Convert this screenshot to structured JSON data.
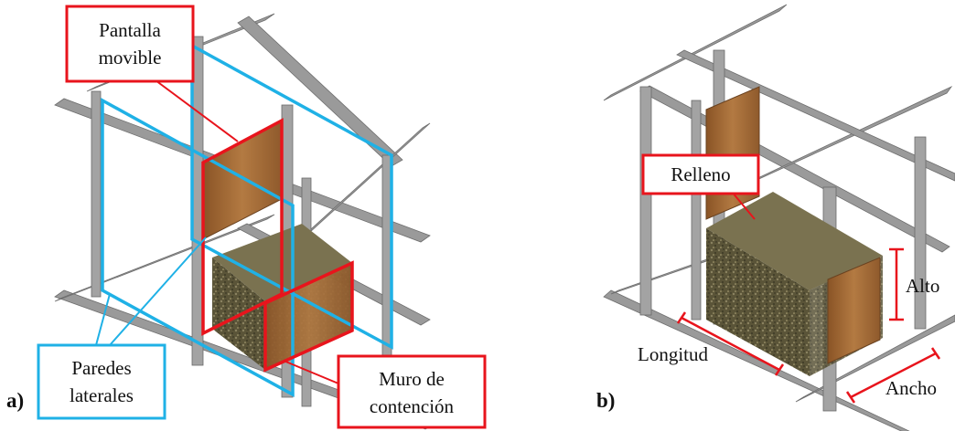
{
  "panel_a": {
    "letter": "a)",
    "labels": {
      "pantalla_line1": "Pantalla",
      "pantalla_line2": "movible",
      "paredes_line1": "Paredes",
      "paredes_line2": "laterales",
      "muro_line1": "Muro de",
      "muro_line2": "contención"
    }
  },
  "panel_b": {
    "letter": "b)",
    "labels": {
      "relleno": "Relleno",
      "alto": "Alto",
      "longitud": "Longitud",
      "ancho": "Ancho"
    }
  },
  "colors": {
    "red_callout": "#e8141c",
    "blue_callout": "#1fb1e6",
    "frame_gray": "#9a9a9a",
    "wood": "#a9703a",
    "soil": "#5a5438"
  },
  "icons": [
    "steel-frame",
    "wood-panel",
    "soil-fill",
    "dimension-bracket"
  ]
}
